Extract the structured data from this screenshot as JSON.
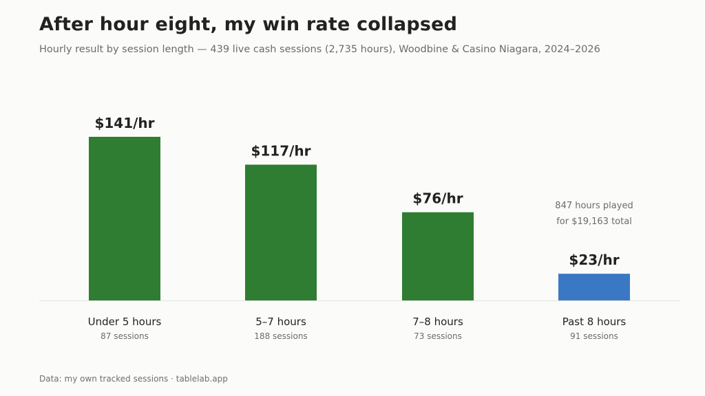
{
  "header": {
    "title": "After hour eight, my win rate collapsed",
    "subtitle": "Hourly result by session length — 439 live cash sessions (2,735 hours), Woodbine & Casino Niagara, 2024–2026"
  },
  "footer": {
    "source": "Data: my own tracked sessions · tablelab.app"
  },
  "chart_data": {
    "type": "bar",
    "title": "After hour eight, my win rate collapsed",
    "subtitle": "Hourly result by session length — 439 live cash sessions (2,735 hours), Woodbine & Casino Niagara, 2024–2026",
    "xlabel": "",
    "ylabel": "",
    "ylim": [
      0,
      150
    ],
    "grid": false,
    "categories": [
      "Under 5 hours",
      "5–7 hours",
      "7–8 hours",
      "Past 8 hours"
    ],
    "category_sublabels": [
      "87 sessions",
      "188 sessions",
      "73 sessions",
      "91 sessions"
    ],
    "values": [
      141,
      117,
      76,
      23
    ],
    "value_labels": [
      "$141/hr",
      "$117/hr",
      "$76/hr",
      "$23/hr"
    ],
    "colors": [
      "#2e7d32",
      "#2e7d32",
      "#2e7d32",
      "#3b78c3"
    ],
    "annotation": {
      "category": "Past 8 hours",
      "lines": [
        "847 hours played",
        "for $19,163 total"
      ]
    }
  }
}
